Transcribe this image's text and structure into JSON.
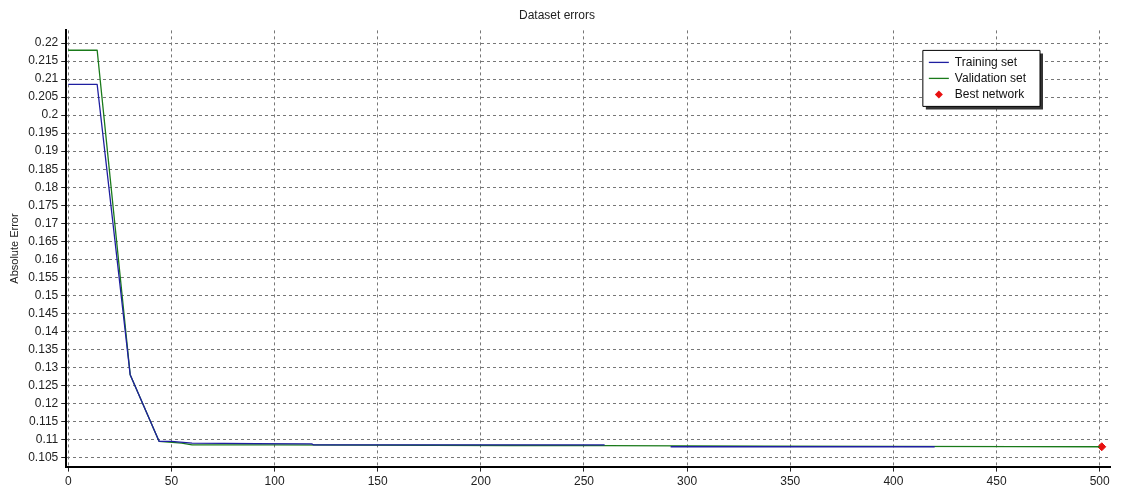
{
  "chart_data": {
    "type": "line",
    "title": "Dataset errors",
    "ylabel": "Absolute Error",
    "xlim": [
      -1,
      505
    ],
    "ylim": [
      0.1025,
      0.2235
    ],
    "xticks": [
      0,
      50,
      100,
      150,
      200,
      250,
      300,
      350,
      400,
      450,
      500
    ],
    "yticks": [
      0.105,
      0.11,
      0.115,
      0.12,
      0.125,
      0.13,
      0.135,
      0.14,
      0.145,
      0.15,
      0.155,
      0.16,
      0.165,
      0.17,
      0.175,
      0.18,
      0.185,
      0.19,
      0.195,
      0.2,
      0.205,
      0.21,
      0.215,
      0.22
    ],
    "grid": true,
    "legend": "top right",
    "marker": "none",
    "line_style": "solid",
    "series": [
      {
        "name": "Training set",
        "color": "#1f1fa0",
        "x": [
          0,
          14,
          30,
          44,
          50,
          60,
          118,
          119,
          260,
          275,
          292,
          420
        ],
        "values": [
          0.2085,
          0.2085,
          0.128,
          0.1095,
          0.1095,
          0.109,
          0.1088,
          0.1085,
          0.1085,
          null,
          0.108,
          0.108
        ]
      },
      {
        "name": "Validation set",
        "color": "#1a7a1a",
        "x": [
          0,
          14,
          30,
          44,
          55,
          60,
          100,
          260,
          500
        ],
        "values": [
          0.218,
          0.218,
          0.128,
          0.1095,
          0.109,
          0.1085,
          0.1085,
          0.1083,
          0.108
        ]
      },
      {
        "name": "Best network",
        "type": "scatter",
        "marker": "diamond",
        "color": "#e81010",
        "x": [
          501
        ],
        "values": [
          0.108
        ]
      }
    ]
  }
}
